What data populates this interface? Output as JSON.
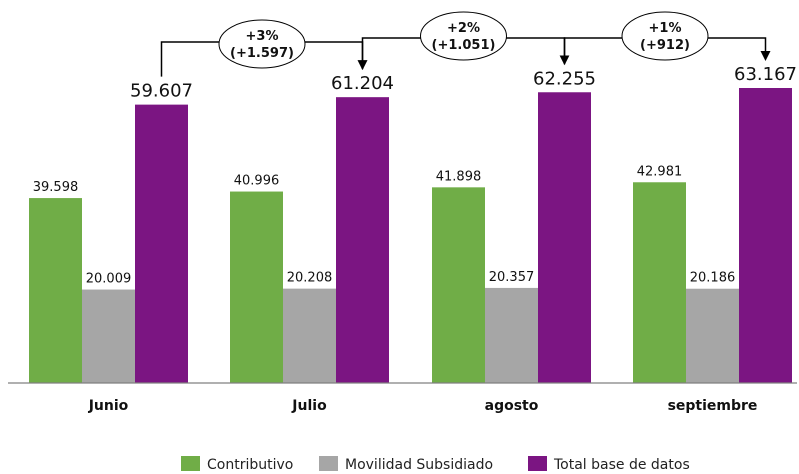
{
  "chart_data": {
    "type": "bar",
    "categories": [
      "Junio",
      "Julio",
      "agosto",
      "septiembre"
    ],
    "series": [
      {
        "name": "Contributivo",
        "values": [
          39598,
          40996,
          41898,
          42981
        ],
        "labels": [
          "39.598",
          "40.996",
          "41.898",
          "42.981"
        ],
        "color": "#70ad47"
      },
      {
        "name": "Movilidad Subsidiado",
        "values": [
          20009,
          20208,
          20357,
          20186
        ],
        "labels": [
          "20.009",
          "20.208",
          "20.357",
          "20.186"
        ],
        "color": "#a6a6a6"
      },
      {
        "name": "Total base de datos",
        "values": [
          59607,
          61204,
          62255,
          63167
        ],
        "labels": [
          "59.607",
          "61.204",
          "62.255",
          "63.167"
        ],
        "color": "#7b1582"
      }
    ],
    "annotations": [
      {
        "line1": "+3%",
        "line2": "(+1.597)"
      },
      {
        "line1": "+2%",
        "line2": "(+1.051)"
      },
      {
        "line1": "+1%",
        "line2": "(+912)"
      }
    ],
    "legend_position": "bottom",
    "ylim": [
      0,
      63167
    ],
    "grid": false
  }
}
